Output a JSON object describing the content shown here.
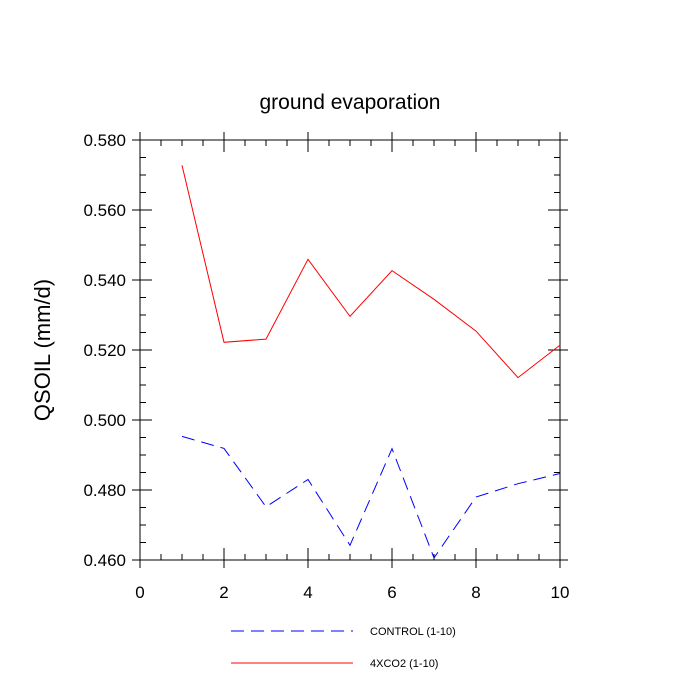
{
  "chart_data": {
    "type": "line",
    "title": "ground evaporation",
    "xlabel": "",
    "ylabel": "QSOIL  (mm/d)",
    "xlim": [
      0,
      10
    ],
    "ylim": [
      0.46,
      0.58
    ],
    "x_ticks": [
      0,
      2,
      4,
      6,
      8,
      10
    ],
    "x_tick_labels": [
      "0",
      "2",
      "4",
      "6",
      "8",
      "10"
    ],
    "y_ticks": [
      0.46,
      0.48,
      0.5,
      0.52,
      0.54,
      0.56,
      0.58
    ],
    "y_tick_labels": [
      "0.460",
      "0.480",
      "0.500",
      "0.520",
      "0.540",
      "0.560",
      "0.580"
    ],
    "grid": false,
    "legend_position": "bottom",
    "series": [
      {
        "name": "CONTROL (1-10)",
        "color": "#0000ff",
        "style": "dashed",
        "x": [
          1,
          2,
          3,
          4,
          5,
          6,
          7,
          8,
          9,
          10
        ],
        "values": [
          0.4953,
          0.4919,
          0.4752,
          0.483,
          0.4642,
          0.4918,
          0.4606,
          0.478,
          0.4818,
          0.4847
        ]
      },
      {
        "name": "4XCO2 (1-10)",
        "color": "#ff0000",
        "style": "solid",
        "x": [
          1,
          2,
          3,
          4,
          5,
          6,
          7,
          8,
          9,
          10
        ],
        "values": [
          0.5728,
          0.5222,
          0.5231,
          0.5459,
          0.5296,
          0.5427,
          0.5345,
          0.5254,
          0.5121,
          0.5214
        ]
      }
    ]
  }
}
